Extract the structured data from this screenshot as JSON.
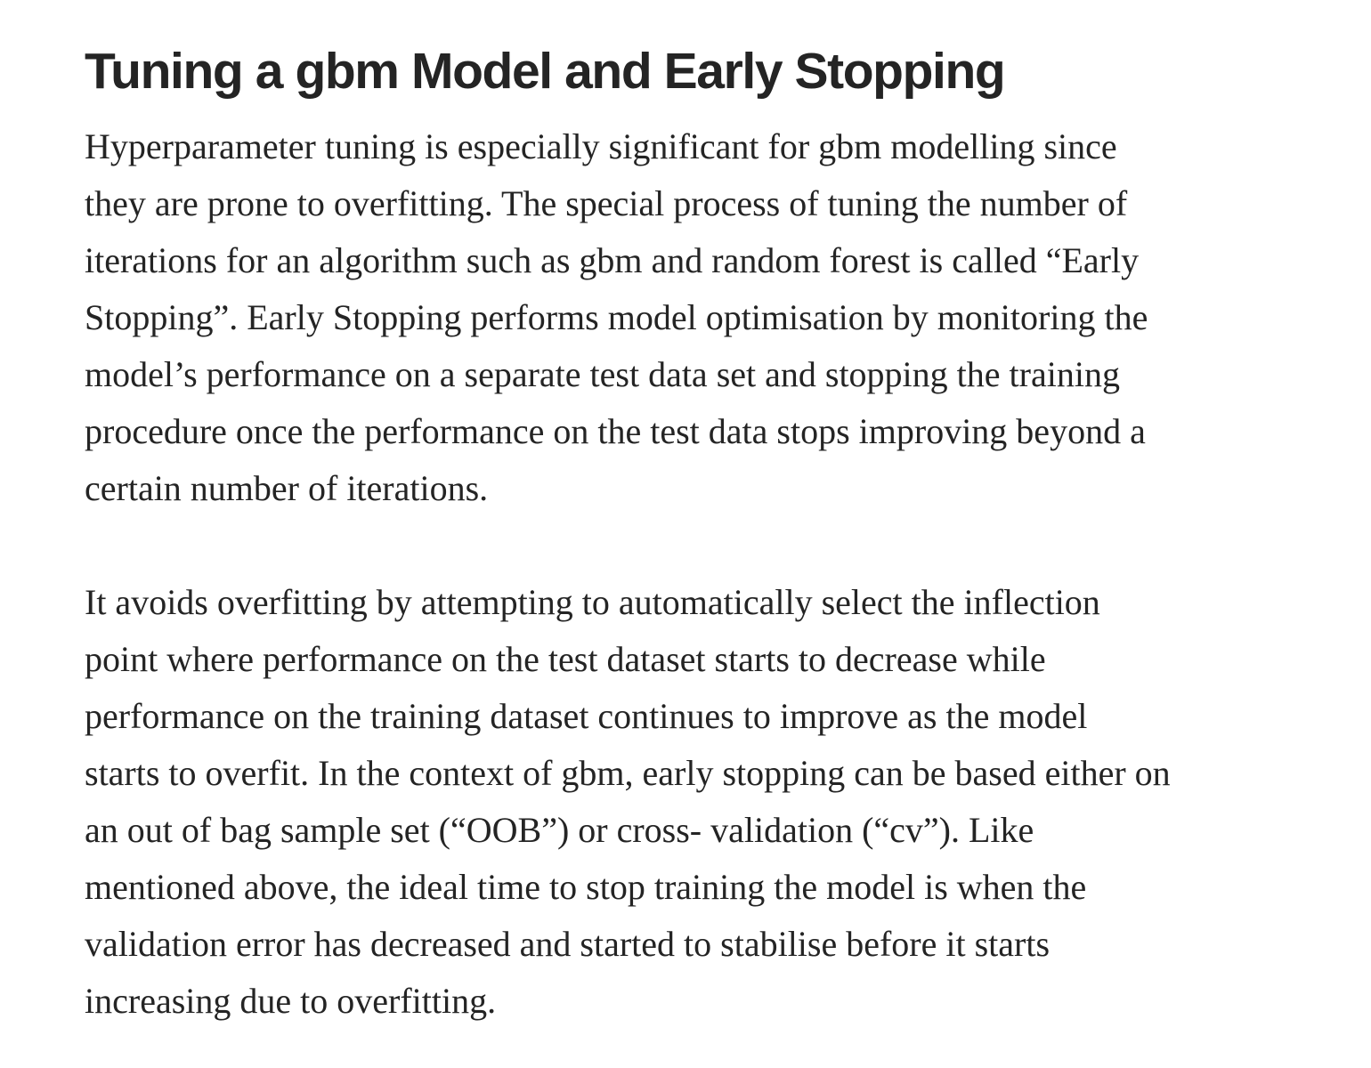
{
  "article": {
    "title": "Tuning a gbm Model and Early Stopping",
    "paragraphs": [
      {
        "lines": [
          "Hyperparameter tuning is especially significant for gbm modelling since",
          "they are prone to overfitting. The special process of tuning the number of",
          "iterations for an algorithm such as gbm and random forest is called “Early",
          "Stopping”. Early Stopping performs model optimisation by monitoring the",
          "model’s performance on a separate test data set and stopping the training",
          "procedure once the performance on the test data stops improving beyond a",
          "certain number of iterations."
        ]
      },
      {
        "lines": [
          "It avoids overfitting by attempting to automatically select the inflection",
          "point where performance on the test dataset starts to decrease while",
          "performance on the training dataset continues to improve as the model",
          "starts to overfit. In the context of gbm, early stopping can be based either on",
          "an out of bag sample set (“OOB”) or cross- validation (“cv”). Like",
          "mentioned above, the ideal time to stop training the model is when the",
          "validation error has decreased and started to stabilise before it starts",
          "increasing due to overfitting."
        ]
      }
    ]
  }
}
